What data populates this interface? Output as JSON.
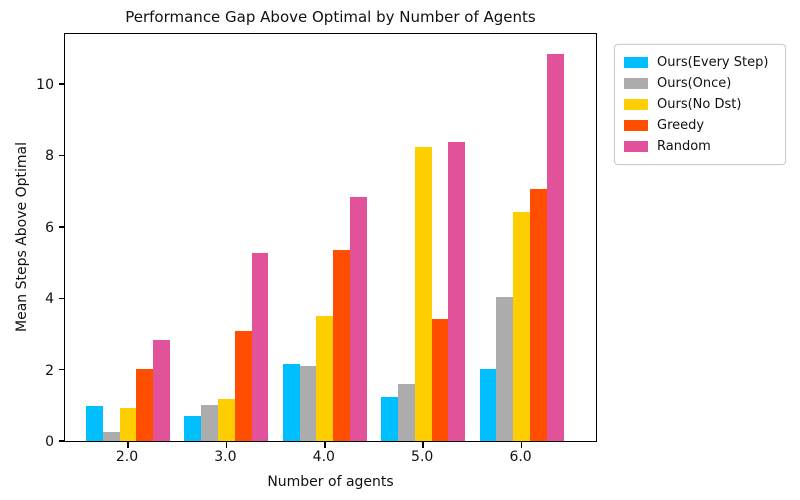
{
  "chart_data": {
    "type": "bar",
    "title": "Performance Gap Above Optimal by Number of Agents",
    "xlabel": "Number of agents",
    "ylabel": "Mean Steps Above Optimal",
    "categories": [
      "2.0",
      "3.0",
      "4.0",
      "5.0",
      "6.0"
    ],
    "series": [
      {
        "name": "Ours(Every Step)",
        "color": "#00BFFF",
        "values": [
          0.97,
          0.7,
          2.17,
          1.24,
          2.02
        ]
      },
      {
        "name": "Ours(Once)",
        "color": "#ACACAC",
        "values": [
          0.25,
          1.01,
          2.09,
          1.6,
          4.04
        ]
      },
      {
        "name": "Ours(No Dst)",
        "color": "#FFCE00",
        "values": [
          0.92,
          1.18,
          3.49,
          8.23,
          6.41
        ]
      },
      {
        "name": "Greedy",
        "color": "#FF4E00",
        "values": [
          2.03,
          3.08,
          5.34,
          3.42,
          7.06
        ]
      },
      {
        "name": "Random",
        "color": "#E2529B",
        "values": [
          2.84,
          5.27,
          6.84,
          8.38,
          10.84
        ]
      }
    ],
    "ylim": [
      0,
      11.46
    ],
    "y_ticks": [
      0,
      2,
      4,
      6,
      8,
      10
    ],
    "grid": false,
    "legend_position": "upper right, outside axes",
    "axis_color": "#000000",
    "background_color": "#ffffff"
  }
}
